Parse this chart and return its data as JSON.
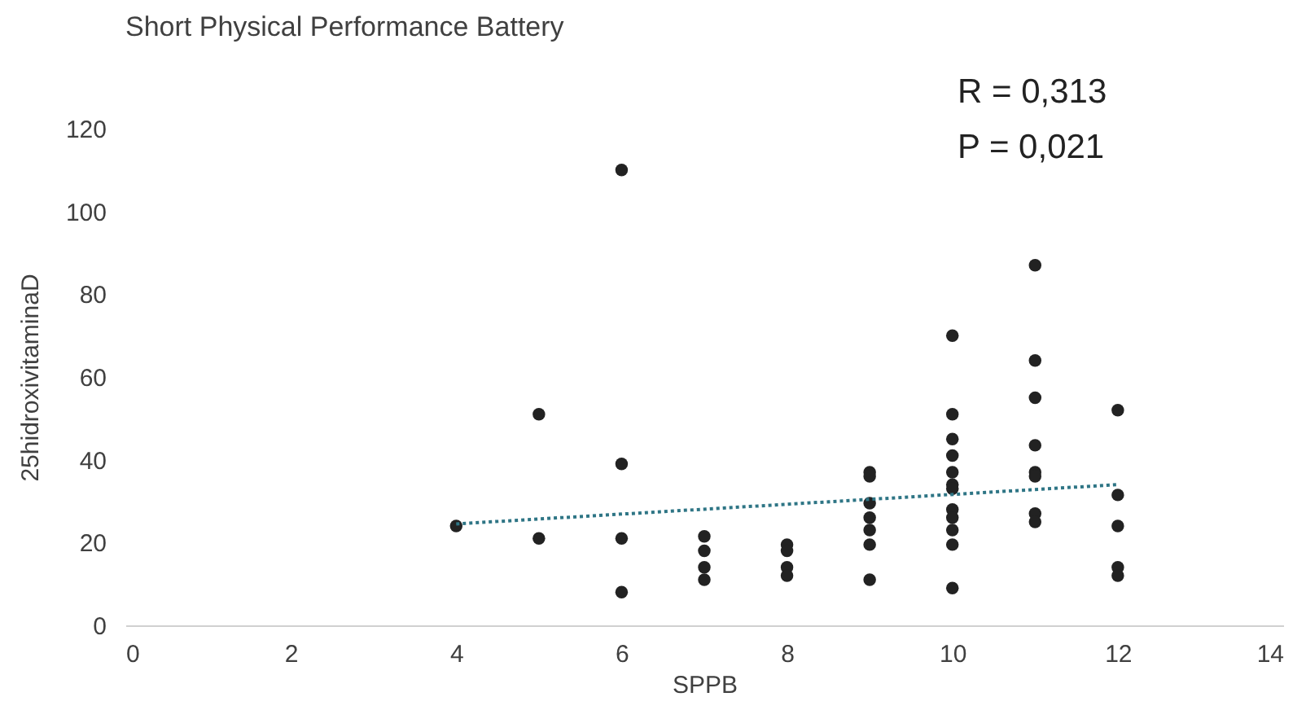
{
  "chart_data": {
    "type": "scatter",
    "title": "Short Physical Performance Battery",
    "xlabel": "SPPB",
    "ylabel": "25hidroxivitaminaD",
    "annotations": [
      "R = 0,313",
      "P = 0,021"
    ],
    "xlim": [
      0,
      14
    ],
    "xticks": [
      0,
      2,
      4,
      6,
      8,
      10,
      12,
      14
    ],
    "ylim": [
      0,
      120
    ],
    "yticks": [
      0,
      20,
      40,
      60,
      80,
      100,
      120
    ],
    "grid": false,
    "series": [
      {
        "marker": "circle",
        "color": "#222222",
        "x": [
          4,
          5,
          5,
          6,
          6,
          6,
          6,
          7,
          7,
          7,
          7,
          8,
          8,
          8,
          8,
          9,
          9,
          9,
          9,
          9,
          9,
          9,
          10,
          10,
          10,
          10,
          10,
          10,
          10,
          10,
          10,
          10,
          10,
          10,
          11,
          11,
          11,
          11,
          11,
          11,
          11,
          11,
          12,
          12,
          12,
          12,
          12
        ],
        "values": [
          24,
          51,
          21,
          110,
          39,
          21,
          8,
          21.5,
          18,
          14,
          11,
          19.5,
          18,
          14,
          12,
          37,
          36,
          29.5,
          26,
          23,
          19.5,
          11,
          70,
          51,
          45,
          41,
          37,
          34,
          33,
          28,
          26,
          23,
          19.5,
          9,
          87,
          64,
          55,
          43.5,
          37,
          36,
          27,
          25,
          52,
          31.5,
          24,
          14,
          12
        ]
      },
      {
        "type": "line",
        "color": "#2e7585",
        "line_style": "dotted",
        "marker": "none",
        "x": [
          4,
          12
        ],
        "values": [
          24.5,
          34
        ]
      }
    ]
  }
}
